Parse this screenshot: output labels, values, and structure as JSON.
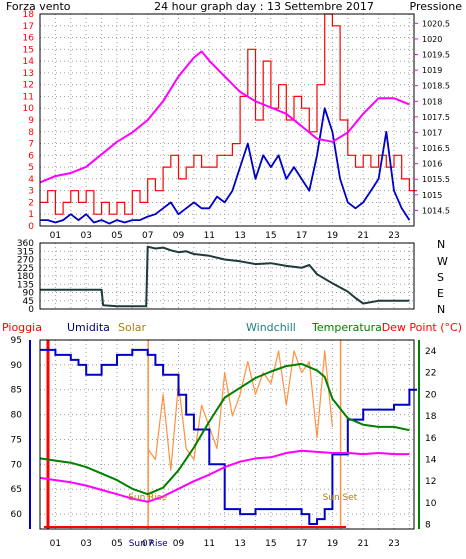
{
  "colors": {
    "background": "#ffffff",
    "wind": "#ff0000",
    "pressure": "#ff00ff",
    "direction": "#1e3a3a",
    "humidity": "#0000c8",
    "solar": "#ff9040",
    "temperature": "#008000",
    "dewpoint": "#ff00ff",
    "rain": "#ff0000",
    "grid": "#a0a0a0",
    "humidity_title": "#000080",
    "solar_title": "#b08000",
    "windchill_title": "#208080",
    "temperature_title": "#008000"
  },
  "header": {
    "left": "Forza vento",
    "center": "24 hour graph day : 13 Settembre 2017",
    "right": "Pressione"
  },
  "bottom_titles": {
    "rain": "Pioggia",
    "humidity": "Umidita",
    "solar": "Solar",
    "windchill": "Windchill",
    "temperature": "Temperatura",
    "dewpoint": "Dew Point (°C)"
  },
  "compass": [
    "N",
    "W",
    "S",
    "E",
    "N"
  ],
  "annotations": {
    "sunrise": "Sun Rise",
    "sunset": "Sun Set",
    "sunrise_axis": "Sun Rise"
  },
  "chart_data": [
    {
      "type": "line",
      "panel": "wind-pressure",
      "x_ticks": [
        "01",
        "03",
        "05",
        "07",
        "09",
        "11",
        "13",
        "15",
        "17",
        "19",
        "21",
        "23"
      ],
      "xlim": [
        0,
        24.3
      ],
      "ylabel_left": "Forza vento",
      "ylabel_right": "Pressione",
      "y_left_ticks": [
        0,
        1,
        2,
        3,
        4,
        5,
        6,
        7,
        8,
        9,
        10,
        11,
        12,
        13,
        14,
        15,
        16,
        17,
        18
      ],
      "y_left_range": [
        0,
        18
      ],
      "y_right_ticks": [
        "1014.5",
        "1015",
        "1015.5",
        "1016",
        "1016.5",
        "1017",
        "1017.5",
        "1018",
        "1018.5",
        "1019",
        "1019.5",
        "1020",
        "1020.5"
      ],
      "y_right_range": [
        1014.0,
        1020.8
      ],
      "grid": true,
      "series": [
        {
          "key": "wind_gust",
          "axis": "left",
          "x": [
            0.0,
            0.5,
            1.0,
            1.5,
            2.0,
            2.5,
            3.0,
            3.5,
            4.0,
            4.5,
            5.0,
            5.5,
            6.0,
            6.5,
            7.0,
            7.5,
            8.0,
            8.5,
            9.0,
            9.5,
            10.0,
            10.5,
            11.0,
            11.5,
            12.0,
            12.5,
            13.0,
            13.5,
            14.0,
            14.5,
            15.0,
            15.5,
            16.0,
            16.5,
            17.0,
            17.5,
            18.0,
            18.5,
            19.0,
            19.5,
            20.0,
            20.5,
            21.0,
            21.5,
            22.0,
            22.5,
            23.0,
            23.5,
            24.0
          ],
          "values": [
            2,
            3,
            1,
            2,
            3,
            2,
            3,
            1,
            2,
            1,
            2,
            1,
            3,
            2,
            4,
            3,
            5,
            6,
            4,
            5,
            6,
            5,
            5,
            6,
            6,
            7,
            11,
            15,
            9,
            14,
            10,
            12,
            9,
            11,
            10,
            8,
            12,
            18,
            17,
            9,
            6,
            5,
            6,
            5,
            6,
            5,
            6,
            4,
            3
          ]
        },
        {
          "key": "wind_avg",
          "axis": "left",
          "x": [
            0.0,
            0.5,
            1.0,
            1.5,
            2.0,
            2.5,
            3.0,
            3.5,
            4.0,
            4.5,
            5.0,
            5.5,
            6.0,
            6.5,
            7.0,
            7.5,
            8.0,
            8.5,
            9.0,
            9.5,
            10.0,
            10.5,
            11.0,
            11.5,
            12.0,
            12.5,
            13.0,
            13.5,
            14.0,
            14.5,
            15.0,
            15.5,
            16.0,
            16.5,
            17.0,
            17.5,
            18.0,
            18.5,
            19.0,
            19.5,
            20.0,
            20.5,
            21.0,
            21.5,
            22.0,
            22.5,
            23.0,
            23.5,
            24.0
          ],
          "values": [
            0.5,
            0.5,
            0.3,
            0.5,
            1,
            0.5,
            1,
            0.3,
            0.5,
            0.2,
            0.5,
            0.3,
            0.5,
            0.5,
            0.8,
            1,
            1.5,
            2,
            1,
            1.5,
            2,
            1.5,
            1.5,
            2.5,
            2,
            3,
            5,
            7,
            4,
            6,
            5,
            6,
            4,
            5,
            4,
            3,
            6,
            10,
            8,
            4,
            2,
            1.5,
            2,
            3,
            4,
            8,
            3,
            1.5,
            0.5
          ]
        },
        {
          "key": "pressure",
          "axis": "right",
          "x": [
            0,
            1,
            2,
            3,
            4,
            5,
            6,
            7,
            8,
            9,
            10,
            10.5,
            11,
            12,
            13,
            14,
            15,
            16,
            17,
            18,
            19,
            20,
            21,
            22,
            23,
            24
          ],
          "values": [
            1015.4,
            1015.6,
            1015.7,
            1015.9,
            1016.3,
            1016.7,
            1017.0,
            1017.4,
            1018.0,
            1018.8,
            1019.4,
            1019.6,
            1019.3,
            1018.8,
            1018.3,
            1018.0,
            1017.8,
            1017.6,
            1017.2,
            1016.8,
            1016.7,
            1017.0,
            1017.6,
            1018.1,
            1018.1,
            1017.9
          ]
        }
      ]
    },
    {
      "type": "line",
      "panel": "wind-direction",
      "x_ticks": [
        "01",
        "03",
        "05",
        "07",
        "09",
        "11",
        "13",
        "15",
        "17",
        "19",
        "21",
        "23"
      ],
      "xlim": [
        0,
        24.3
      ],
      "y_ticks": [
        0,
        45,
        90,
        135,
        180,
        225,
        270,
        315,
        360
      ],
      "ylim": [
        0,
        360
      ],
      "grid": true,
      "series": [
        {
          "key": "direction",
          "x": [
            0,
            1,
            2,
            3,
            4,
            4.1,
            5,
            6,
            6.9,
            7,
            7.5,
            8,
            8.5,
            9,
            9.5,
            10,
            11,
            12,
            13,
            14,
            15,
            16,
            17,
            17.5,
            18,
            19,
            20,
            20.5,
            21,
            22,
            23,
            24
          ],
          "values": [
            105,
            105,
            105,
            105,
            105,
            20,
            15,
            15,
            15,
            340,
            330,
            335,
            320,
            310,
            315,
            300,
            290,
            270,
            260,
            245,
            250,
            235,
            225,
            240,
            190,
            140,
            95,
            60,
            30,
            45,
            45,
            45
          ]
        }
      ]
    },
    {
      "type": "line",
      "panel": "humidity-temperature",
      "x_ticks": [
        "01",
        "03",
        "05",
        "07",
        "09",
        "11",
        "13",
        "15",
        "17",
        "19",
        "21",
        "23"
      ],
      "xlim": [
        0,
        24.3
      ],
      "ylabel_left": "Umidita",
      "ylabel_right": "Dew Point (°C)",
      "y_left_ticks": [
        60,
        65,
        70,
        75,
        80,
        85,
        90,
        95
      ],
      "y_left_range": [
        57,
        95
      ],
      "y_right_ticks": [
        8,
        10,
        12,
        14,
        16,
        18,
        20,
        22,
        24
      ],
      "y_right_range": [
        7.6,
        25.0
      ],
      "grid": true,
      "series": [
        {
          "key": "humidity",
          "axis": "left",
          "x": [
            0,
            1,
            2,
            2.5,
            3,
            4,
            5,
            6,
            7,
            7.5,
            8,
            9,
            9.5,
            10,
            11,
            12,
            13,
            14,
            15,
            16,
            17,
            17.5,
            18,
            18.5,
            19,
            20,
            21,
            22,
            23,
            24
          ],
          "values": [
            93,
            92,
            91,
            90,
            88,
            90,
            92,
            93,
            92,
            90,
            88,
            84,
            80,
            77,
            70,
            61,
            60,
            61,
            61,
            61,
            60,
            58,
            59,
            61,
            72,
            79,
            81,
            81,
            82,
            85
          ]
        },
        {
          "key": "solar",
          "axis": "right",
          "x": [
            7.0,
            7.5,
            8.0,
            8.5,
            9.0,
            9.5,
            10.0,
            10.5,
            11.0,
            11.5,
            12.0,
            12.5,
            13.0,
            13.5,
            14.0,
            14.5,
            15.0,
            15.5,
            16.0,
            16.5,
            17.0,
            17.5,
            18.0,
            18.5,
            19.0
          ],
          "values": [
            15,
            14,
            20,
            13,
            21,
            15,
            14,
            19,
            17,
            15,
            22,
            18,
            20,
            23,
            20,
            22,
            21,
            24,
            19,
            24,
            22,
            23,
            16,
            24,
            17
          ]
        },
        {
          "key": "temperature",
          "axis": "right",
          "x": [
            0,
            1,
            2,
            3,
            4,
            5,
            6,
            7,
            8,
            9,
            10,
            11,
            12,
            13,
            14,
            15,
            16,
            17,
            18,
            18.5,
            19,
            20,
            21,
            22,
            23,
            24
          ],
          "values": [
            14.1,
            13.9,
            13.7,
            13.3,
            12.7,
            12.1,
            11.3,
            10.8,
            11.4,
            13.0,
            15.1,
            17.5,
            19.7,
            20.6,
            21.5,
            22.1,
            22.6,
            22.8,
            22.2,
            21.6,
            19.6,
            17.8,
            17.2,
            17.0,
            17.0,
            16.7
          ]
        },
        {
          "key": "dewpoint",
          "axis": "right",
          "x": [
            0,
            1,
            2,
            3,
            4,
            5,
            6,
            7,
            8,
            9,
            10,
            11,
            12,
            13,
            14,
            15,
            16,
            17,
            18,
            19,
            20,
            21,
            22,
            23,
            24
          ],
          "values": [
            12.3,
            12.1,
            11.9,
            11.6,
            11.2,
            10.8,
            10.4,
            10.1,
            10.6,
            11.3,
            12.0,
            12.6,
            13.3,
            13.8,
            14.1,
            14.2,
            14.6,
            14.8,
            14.7,
            14.6,
            14.6,
            14.5,
            14.6,
            14.5,
            14.5
          ]
        }
      ],
      "sun_rise_hour": 7.03,
      "sun_set_hour": 19.53,
      "rain": 0
    }
  ]
}
